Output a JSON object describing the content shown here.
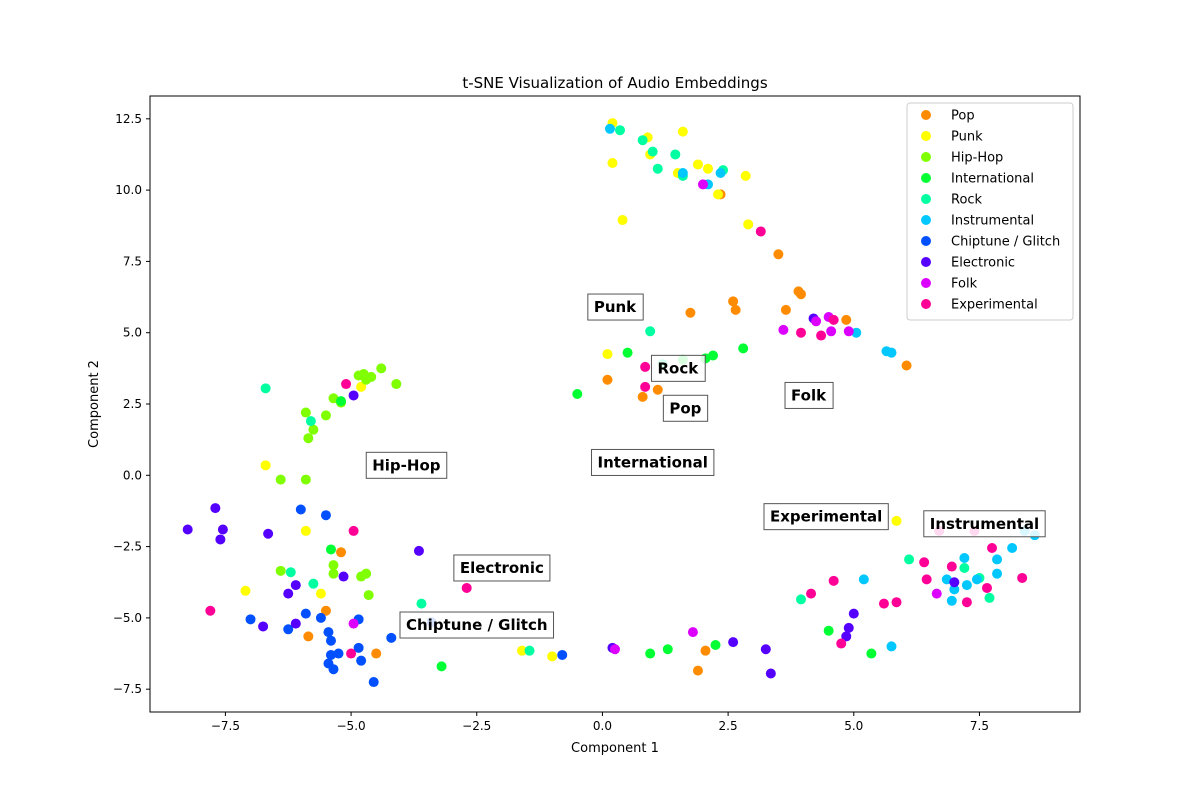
{
  "chart_data": {
    "type": "scatter",
    "title": "t-SNE Visualization of Audio Embeddings",
    "xlabel": "Component 1",
    "ylabel": "Component 2",
    "xlim": [
      -9.0,
      9.5
    ],
    "ylim": [
      -8.3,
      13.3
    ],
    "xticks": [
      -7.5,
      -5.0,
      -2.5,
      0.0,
      2.5,
      5.0,
      7.5
    ],
    "xtick_labels": [
      "−7.5",
      "−5.0",
      "−2.5",
      "0.0",
      "2.5",
      "5.0",
      "7.5"
    ],
    "yticks": [
      -7.5,
      -5.0,
      -2.5,
      0.0,
      2.5,
      5.0,
      7.5,
      10.0,
      12.5
    ],
    "ytick_labels": [
      "−7.5",
      "−5.0",
      "−2.5",
      "0.0",
      "2.5",
      "5.0",
      "7.5",
      "10.0",
      "12.5"
    ],
    "grid": false,
    "legend_position": "top-right",
    "series": [
      {
        "name": "Pop",
        "color": "#ff8c00",
        "points": [
          [
            2.35,
            9.85
          ],
          [
            3.5,
            7.75
          ],
          [
            3.95,
            6.35
          ],
          [
            2.6,
            6.1
          ],
          [
            2.65,
            5.8
          ],
          [
            3.65,
            5.8
          ],
          [
            4.85,
            5.45
          ],
          [
            1.75,
            5.7
          ],
          [
            6.05,
            3.85
          ],
          [
            0.1,
            3.35
          ],
          [
            1.1,
            3.0
          ],
          [
            0.8,
            2.75
          ],
          [
            -5.2,
            -2.7
          ],
          [
            -5.5,
            -4.75
          ],
          [
            -5.85,
            -5.65
          ],
          [
            -4.5,
            -6.25
          ],
          [
            2.05,
            -6.15
          ],
          [
            1.9,
            -6.85
          ],
          [
            3.9,
            6.45
          ]
        ]
      },
      {
        "name": "Punk",
        "color": "#ffff00",
        "points": [
          [
            0.2,
            12.35
          ],
          [
            0.95,
            11.25
          ],
          [
            1.5,
            10.6
          ],
          [
            1.9,
            10.9
          ],
          [
            2.1,
            10.75
          ],
          [
            2.3,
            9.85
          ],
          [
            2.85,
            10.5
          ],
          [
            0.4,
            8.95
          ],
          [
            2.9,
            8.8
          ],
          [
            0.2,
            10.95
          ],
          [
            0.9,
            11.85
          ],
          [
            1.6,
            12.05
          ],
          [
            0.1,
            4.25
          ],
          [
            -6.7,
            0.35
          ],
          [
            -5.9,
            -1.95
          ],
          [
            -4.8,
            3.1
          ],
          [
            -7.1,
            -4.05
          ],
          [
            -5.6,
            -4.15
          ],
          [
            -1.6,
            -6.15
          ],
          [
            -1.0,
            -6.35
          ],
          [
            5.85,
            -1.6
          ]
        ]
      },
      {
        "name": "Hip-Hop",
        "color": "#7fff00",
        "points": [
          [
            -4.75,
            3.55
          ],
          [
            -4.6,
            3.45
          ],
          [
            -4.4,
            3.75
          ],
          [
            -4.7,
            3.35
          ],
          [
            -4.1,
            3.2
          ],
          [
            -5.35,
            2.7
          ],
          [
            -5.2,
            2.55
          ],
          [
            -5.5,
            2.1
          ],
          [
            -5.9,
            2.2
          ],
          [
            -5.75,
            1.6
          ],
          [
            -5.85,
            1.3
          ],
          [
            -6.4,
            -0.15
          ],
          [
            -5.9,
            -0.15
          ],
          [
            -6.4,
            -3.35
          ],
          [
            -5.35,
            -3.15
          ],
          [
            -5.35,
            -3.45
          ],
          [
            -4.8,
            -3.55
          ],
          [
            -4.7,
            -3.45
          ],
          [
            -4.65,
            -4.2
          ],
          [
            -4.85,
            3.5
          ]
        ]
      },
      {
        "name": "International",
        "color": "#00ff33",
        "points": [
          [
            0.5,
            4.3
          ],
          [
            1.6,
            4.05
          ],
          [
            2.05,
            4.1
          ],
          [
            2.2,
            4.2
          ],
          [
            2.8,
            4.45
          ],
          [
            -0.5,
            2.85
          ],
          [
            -5.2,
            2.6
          ],
          [
            -5.4,
            -2.6
          ],
          [
            -3.2,
            -6.7
          ],
          [
            0.95,
            -6.25
          ],
          [
            1.3,
            -6.1
          ],
          [
            2.25,
            -5.95
          ],
          [
            4.5,
            -5.45
          ],
          [
            5.35,
            -6.25
          ]
        ]
      },
      {
        "name": "Rock",
        "color": "#00ffa0",
        "points": [
          [
            0.35,
            12.1
          ],
          [
            0.8,
            11.75
          ],
          [
            1.0,
            11.35
          ],
          [
            1.45,
            11.25
          ],
          [
            1.1,
            10.75
          ],
          [
            1.6,
            10.5
          ],
          [
            2.4,
            10.7
          ],
          [
            0.95,
            5.05
          ],
          [
            1.2,
            3.9
          ],
          [
            -6.7,
            3.05
          ],
          [
            -5.8,
            1.9
          ],
          [
            -6.2,
            -3.4
          ],
          [
            -5.75,
            -3.8
          ],
          [
            -3.6,
            -4.5
          ],
          [
            -1.45,
            -6.15
          ],
          [
            3.95,
            -4.35
          ],
          [
            6.1,
            -2.95
          ],
          [
            7.2,
            -3.25
          ],
          [
            7.5,
            -3.6
          ],
          [
            7.7,
            -4.3
          ]
        ]
      },
      {
        "name": "Instrumental",
        "color": "#00c8ff",
        "points": [
          [
            0.15,
            12.15
          ],
          [
            1.6,
            10.6
          ],
          [
            2.1,
            10.2
          ],
          [
            2.35,
            10.6
          ],
          [
            5.05,
            5.0
          ],
          [
            5.65,
            4.35
          ],
          [
            5.75,
            4.3
          ],
          [
            8.4,
            -1.95
          ],
          [
            8.6,
            -2.1
          ],
          [
            8.15,
            -2.55
          ],
          [
            7.2,
            -2.9
          ],
          [
            7.85,
            -2.95
          ],
          [
            7.85,
            -3.45
          ],
          [
            6.85,
            -3.65
          ],
          [
            7.25,
            -3.85
          ],
          [
            7.45,
            -3.65
          ],
          [
            5.2,
            -3.65
          ],
          [
            7.0,
            -4.0
          ],
          [
            6.95,
            -4.4
          ],
          [
            5.75,
            -6.0
          ]
        ]
      },
      {
        "name": "Chiptune / Glitch",
        "color": "#0050ff",
        "points": [
          [
            -6.0,
            -1.2
          ],
          [
            -5.5,
            -1.4
          ],
          [
            -7.0,
            -5.05
          ],
          [
            -6.25,
            -5.4
          ],
          [
            -5.9,
            -4.85
          ],
          [
            -5.6,
            -5.0
          ],
          [
            -5.45,
            -5.5
          ],
          [
            -5.4,
            -5.8
          ],
          [
            -5.4,
            -6.3
          ],
          [
            -5.25,
            -6.25
          ],
          [
            -5.45,
            -6.6
          ],
          [
            -5.35,
            -6.8
          ],
          [
            -4.85,
            -6.05
          ],
          [
            -4.8,
            -6.5
          ],
          [
            -4.55,
            -7.25
          ],
          [
            -4.85,
            -5.05
          ],
          [
            -4.2,
            -5.7
          ],
          [
            -3.4,
            -5.15
          ],
          [
            -0.8,
            -6.3
          ]
        ]
      },
      {
        "name": "Electronic",
        "color": "#5500ff",
        "points": [
          [
            -8.25,
            -1.9
          ],
          [
            -7.7,
            -1.15
          ],
          [
            -7.55,
            -1.9
          ],
          [
            -7.6,
            -2.25
          ],
          [
            -6.65,
            -2.05
          ],
          [
            -6.1,
            -3.85
          ],
          [
            -6.25,
            -4.15
          ],
          [
            -5.15,
            -3.55
          ],
          [
            -6.1,
            -5.2
          ],
          [
            -6.75,
            -5.3
          ],
          [
            -3.65,
            -2.65
          ],
          [
            -4.95,
            2.8
          ],
          [
            0.2,
            -6.05
          ],
          [
            2.6,
            -5.85
          ],
          [
            3.25,
            -6.1
          ],
          [
            3.35,
            -6.95
          ],
          [
            4.2,
            5.5
          ],
          [
            4.85,
            -5.65
          ],
          [
            4.9,
            -5.35
          ],
          [
            5.0,
            -4.85
          ],
          [
            7.0,
            -3.75
          ]
        ]
      },
      {
        "name": "Folk",
        "color": "#dc00ff",
        "points": [
          [
            2.0,
            10.2
          ],
          [
            3.6,
            5.1
          ],
          [
            4.25,
            5.4
          ],
          [
            4.5,
            5.55
          ],
          [
            4.55,
            5.05
          ],
          [
            4.9,
            5.05
          ],
          [
            -4.95,
            -5.2
          ],
          [
            1.8,
            -5.5
          ],
          [
            0.25,
            -6.1
          ],
          [
            6.65,
            -4.15
          ]
        ]
      },
      {
        "name": "Experimental",
        "color": "#ff0096",
        "points": [
          [
            3.15,
            8.55
          ],
          [
            4.6,
            5.45
          ],
          [
            3.95,
            5.0
          ],
          [
            4.35,
            4.9
          ],
          [
            0.85,
            3.8
          ],
          [
            0.85,
            3.1
          ],
          [
            -5.1,
            3.2
          ],
          [
            -4.95,
            -1.95
          ],
          [
            -2.7,
            -3.95
          ],
          [
            -7.8,
            -4.75
          ],
          [
            -5.0,
            -6.25
          ],
          [
            4.15,
            -4.15
          ],
          [
            4.6,
            -3.7
          ],
          [
            5.6,
            -4.5
          ],
          [
            5.85,
            -4.45
          ],
          [
            6.45,
            -3.65
          ],
          [
            6.4,
            -3.05
          ],
          [
            6.95,
            -3.2
          ],
          [
            7.75,
            -2.55
          ],
          [
            7.25,
            -4.45
          ],
          [
            7.65,
            -3.95
          ],
          [
            8.35,
            -3.6
          ],
          [
            4.75,
            -5.9
          ],
          [
            6.7,
            -1.95
          ],
          [
            7.4,
            -1.95
          ]
        ]
      }
    ],
    "cluster_labels": [
      {
        "text": "Punk",
        "x": 0.25,
        "y": 5.9
      },
      {
        "text": "Rock",
        "x": 1.5,
        "y": 3.75
      },
      {
        "text": "Pop",
        "x": 1.65,
        "y": 2.35
      },
      {
        "text": "Folk",
        "x": 4.1,
        "y": 2.8
      },
      {
        "text": "International",
        "x": 1.0,
        "y": 0.45
      },
      {
        "text": "Hip-Hop",
        "x": -3.9,
        "y": 0.35
      },
      {
        "text": "Experimental",
        "x": 4.45,
        "y": -1.45
      },
      {
        "text": "Instrumental",
        "x": 7.6,
        "y": -1.7
      },
      {
        "text": "Electronic",
        "x": -2.0,
        "y": -3.25
      },
      {
        "text": "Chiptune / Glitch",
        "x": -2.5,
        "y": -5.25
      }
    ]
  }
}
